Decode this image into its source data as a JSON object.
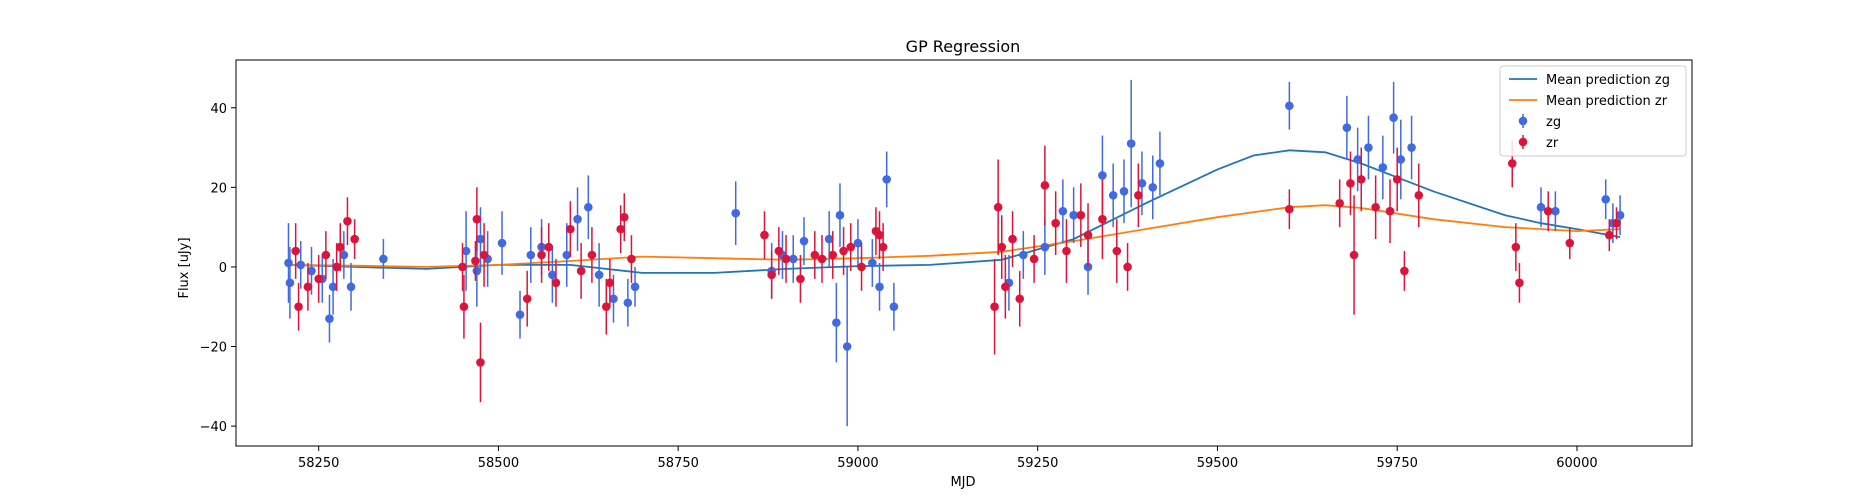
{
  "chart_data": {
    "type": "scatter",
    "title": "GP Regression",
    "xlabel": "MJD",
    "ylabel": "Flux [uJy]",
    "xlim": [
      58135,
      60160
    ],
    "ylim": [
      -45,
      52
    ],
    "xticks": [
      58250,
      58500,
      58750,
      59000,
      59250,
      59500,
      59750,
      60000
    ],
    "yticks": [
      -40,
      -20,
      0,
      20,
      40
    ],
    "legend_position": "top-right",
    "colors": {
      "zg_points": "#4169e1",
      "zr_points": "#dc143c",
      "zg_line": "#1f77b4",
      "zr_line": "#ff7f0e"
    },
    "legend": [
      {
        "label": "Mean prediction zg",
        "kind": "line",
        "color": "#1f77b4"
      },
      {
        "label": "Mean prediction zr",
        "kind": "line",
        "color": "#ff7f0e"
      },
      {
        "label": "zg",
        "kind": "errorbar",
        "color": "#4169e1"
      },
      {
        "label": "zr",
        "kind": "errorbar",
        "color": "#dc143c"
      }
    ],
    "series": [
      {
        "name": "Mean prediction zg",
        "kind": "line",
        "x": [
          58210,
          58300,
          58400,
          58500,
          58600,
          58700,
          58800,
          58900,
          59000,
          59100,
          59200,
          59300,
          59400,
          59500,
          59550,
          59600,
          59650,
          59700,
          59800,
          59900,
          59950,
          60000,
          60060
        ],
        "y": [
          0.5,
          0.0,
          -0.5,
          0.5,
          0.5,
          -1.5,
          -1.5,
          -0.5,
          0.2,
          0.5,
          1.8,
          7,
          16,
          24.5,
          28,
          29.3,
          28.8,
          26,
          19,
          13,
          11,
          9.5,
          7.5
        ]
      },
      {
        "name": "Mean prediction zr",
        "kind": "line",
        "x": [
          58210,
          58300,
          58400,
          58500,
          58600,
          58700,
          58800,
          58900,
          59000,
          59100,
          59200,
          59300,
          59400,
          59500,
          59600,
          59650,
          59700,
          59800,
          59900,
          60000,
          60060
        ],
        "y": [
          0.5,
          0.3,
          0,
          0.5,
          1.5,
          2.6,
          2.2,
          1.8,
          2.2,
          2.8,
          3.8,
          6.5,
          9.5,
          12.5,
          15,
          15.5,
          14.8,
          12,
          10,
          9,
          9.5
        ]
      },
      {
        "name": "zg",
        "kind": "errorbar",
        "x": [
          58208,
          58210,
          58225,
          58240,
          58255,
          58265,
          58270,
          58285,
          58295,
          58340,
          58455,
          58470,
          58475,
          58485,
          58505,
          58530,
          58545,
          58560,
          58575,
          58595,
          58610,
          58625,
          58640,
          58660,
          58680,
          58690,
          58830,
          58880,
          58895,
          58910,
          58925,
          58960,
          58970,
          58975,
          58985,
          59000,
          59020,
          59030,
          59040,
          59050,
          59210,
          59230,
          59260,
          59285,
          59300,
          59320,
          59340,
          59355,
          59370,
          59380,
          59395,
          59410,
          59420,
          59600,
          59680,
          59695,
          59710,
          59730,
          59745,
          59755,
          59770,
          59950,
          59970,
          60040,
          60050,
          60060
        ],
        "y": [
          1,
          -4,
          0.5,
          -1,
          -3,
          -13,
          -5,
          3,
          -5,
          2,
          4,
          -1,
          7,
          2,
          6,
          -12,
          3,
          5,
          -2,
          3,
          12,
          15,
          -2,
          -8,
          -9,
          -5,
          13.5,
          -1,
          3,
          2,
          6.5,
          7,
          -14,
          13,
          -20,
          6,
          1,
          -5,
          22,
          -10,
          -4,
          3,
          5,
          14,
          13,
          0,
          23,
          18,
          19,
          31,
          21,
          20,
          26,
          40.5,
          35,
          27,
          30,
          25,
          37.5,
          27,
          30,
          15,
          14,
          17,
          11,
          13
        ],
        "err": [
          10,
          9,
          6,
          6,
          6,
          6,
          7,
          6,
          6,
          5,
          10,
          9,
          8,
          7,
          8,
          6,
          7,
          7,
          7,
          8,
          8,
          8,
          8,
          6,
          6,
          5,
          8,
          7,
          6,
          6,
          6,
          7,
          10,
          8,
          20,
          6,
          6,
          6,
          7,
          6,
          7,
          6,
          7,
          8,
          7,
          7,
          10,
          8,
          8,
          16,
          8,
          8,
          8,
          6,
          8,
          8,
          8,
          8,
          9,
          10,
          8,
          5,
          5,
          5,
          5,
          5
        ]
      },
      {
        "name": "zr",
        "kind": "errorbar",
        "x": [
          58218,
          58222,
          58235,
          58250,
          58260,
          58275,
          58280,
          58290,
          58300,
          58450,
          58452,
          58468,
          58470,
          58475,
          58480,
          58540,
          58560,
          58570,
          58580,
          58600,
          58615,
          58630,
          58650,
          58655,
          58670,
          58675,
          58685,
          58870,
          58880,
          58890,
          58900,
          58920,
          58940,
          58950,
          58965,
          58980,
          58990,
          59005,
          59025,
          59030,
          59035,
          59190,
          59195,
          59200,
          59205,
          59215,
          59225,
          59245,
          59260,
          59275,
          59290,
          59310,
          59320,
          59340,
          59360,
          59375,
          59390,
          59600,
          59670,
          59685,
          59690,
          59700,
          59720,
          59740,
          59750,
          59760,
          59780,
          59910,
          59915,
          59920,
          59960,
          59990,
          60045,
          60055
        ],
        "y": [
          4,
          -10,
          -5,
          -3,
          3,
          0,
          5,
          11.5,
          7,
          0,
          -10,
          1.5,
          12,
          -24,
          3,
          -8,
          3,
          5,
          -4,
          9.5,
          -1,
          3,
          -10,
          -4,
          9.5,
          12.5,
          2,
          8,
          -2,
          4,
          2,
          -3,
          3,
          2,
          3,
          4,
          5,
          0,
          9,
          8,
          5,
          -10,
          15,
          5,
          -5,
          7,
          -8,
          2,
          20.5,
          11,
          4,
          13,
          8,
          12,
          4,
          0,
          18,
          14.5,
          16,
          21,
          3,
          22,
          15,
          14,
          22,
          -1,
          18,
          26,
          5,
          -4,
          14,
          6,
          8,
          11
        ],
        "err": [
          7,
          6,
          6,
          6,
          6,
          6,
          6,
          6,
          5,
          6,
          8,
          5,
          8,
          10,
          8,
          7,
          7,
          6,
          6,
          7,
          7,
          7,
          7,
          6,
          6,
          6,
          6,
          6,
          6,
          6,
          6,
          6,
          6,
          6,
          6,
          6,
          6,
          6,
          6,
          6,
          6,
          12,
          12,
          8,
          8,
          7,
          7,
          6,
          10,
          8,
          8,
          8,
          8,
          10,
          8,
          6,
          8,
          5,
          6,
          8,
          15,
          8,
          8,
          8,
          8,
          5,
          8,
          6,
          6,
          5,
          5,
          4,
          4,
          4
        ]
      }
    ]
  }
}
